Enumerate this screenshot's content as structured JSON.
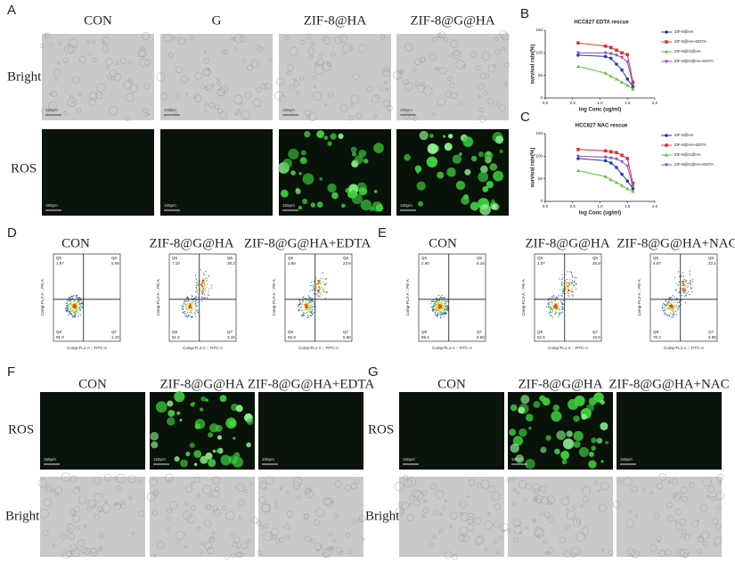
{
  "panel_a": {
    "label": "A",
    "columns": [
      "CON",
      "G",
      "ZIF-8@HA",
      "ZIF-8@G@HA"
    ],
    "rows": [
      "Bright",
      "ROS"
    ],
    "scale_bar": "150μm"
  },
  "chart_data": [
    {
      "type": "line",
      "label": "B",
      "title": "HCC827 EDTA rescue",
      "xlabel": "log Conc (ug/ml)",
      "ylabel": "survival rate(%)",
      "x": [
        0.6,
        1.1,
        1.2,
        1.3,
        1.4,
        1.5,
        1.6
      ],
      "xlim": [
        0,
        2
      ],
      "xticks": [
        {
          "value": 0,
          "label": "0.0"
        },
        {
          "value": 0.5,
          "label": "0.5"
        },
        {
          "value": 1,
          "label": "1.0"
        },
        {
          "value": 1.5,
          "label": "1.5"
        },
        {
          "value": 2,
          "label": "2.0"
        }
      ],
      "ylim": [
        0,
        150
      ],
      "yticks": [
        0,
        50,
        100,
        150
      ],
      "series": [
        {
          "name": "ZIF-8@HA",
          "color": "#1f3f9f",
          "marker": "circle",
          "values": [
            95,
            92,
            88,
            75,
            62,
            42,
            25
          ]
        },
        {
          "name": "ZIF-8@HA+EDTA",
          "color": "#e03030",
          "marker": "square",
          "values": [
            122,
            115,
            112,
            106,
            100,
            96,
            35
          ]
        },
        {
          "name": "ZIF-8@G@HA",
          "color": "#5fc040",
          "marker": "triangle",
          "values": [
            70,
            55,
            48,
            42,
            35,
            28,
            20
          ]
        },
        {
          "name": "ZIF-8@G@HA+EDTA",
          "color": "#8a4fc0",
          "marker": "triangle-down",
          "values": [
            100,
            100,
            98,
            95,
            90,
            80,
            30
          ]
        }
      ]
    },
    {
      "type": "line",
      "label": "C",
      "title": "HCC827 NAC rescue",
      "xlabel": "log Conc (ug/ml)",
      "ylabel": "survival rate(%)",
      "x": [
        0.6,
        1.1,
        1.2,
        1.3,
        1.4,
        1.5,
        1.6
      ],
      "xlim": [
        0,
        2
      ],
      "xticks": [
        {
          "value": 0,
          "label": "0.0"
        },
        {
          "value": 0.5,
          "label": "0.5"
        },
        {
          "value": 1,
          "label": "1.0"
        },
        {
          "value": 1.5,
          "label": "1.5"
        },
        {
          "value": 2,
          "label": "2.0"
        }
      ],
      "ylim": [
        0,
        150
      ],
      "yticks": [
        0,
        50,
        100,
        150
      ],
      "series": [
        {
          "name": "ZIF-8@HA",
          "color": "#1f3f9f",
          "marker": "circle",
          "values": [
            95,
            90,
            85,
            75,
            60,
            45,
            28
          ]
        },
        {
          "name": "ZIF-8@HA+EDTA",
          "color": "#e03030",
          "marker": "square",
          "values": [
            115,
            112,
            110,
            108,
            102,
            95,
            40
          ]
        },
        {
          "name": "ZIF-8@G@HA",
          "color": "#5fc040",
          "marker": "triangle",
          "values": [
            68,
            55,
            48,
            42,
            35,
            28,
            22
          ]
        },
        {
          "name": "ZIF-8@G@HA+EDTA",
          "color": "#8a4fc0",
          "marker": "triangle-down",
          "values": [
            100,
            98,
            96,
            94,
            88,
            78,
            32
          ]
        }
      ]
    }
  ],
  "panel_d": {
    "label": "D",
    "x_axis": "Comp-FL1-A :: FITC-A",
    "y_axis": "Comp-PL3-A :: PE-A",
    "quadrants": [
      "Q5",
      "Q6",
      "Q8",
      "Q7"
    ],
    "plots": [
      {
        "title": "CON",
        "values": [
          "1.57",
          "5.06",
          "91.9",
          "1.43"
        ]
      },
      {
        "title": "ZIF-8@G@HA",
        "values": [
          "7.10",
          "38.3",
          "51.6",
          "3.15"
        ]
      },
      {
        "title": "ZIF-8@G@HA+EDTA",
        "values": [
          "3.89",
          "23.5",
          "65.9",
          "6.66"
        ]
      }
    ]
  },
  "panel_e": {
    "label": "E",
    "x_axis": "Comp-FL1-A :: FITC-A",
    "y_axis": "Comp-PL3-A :: PE-A",
    "quadrants": [
      "Q5",
      "Q6",
      "Q8",
      "Q7"
    ],
    "plots": [
      {
        "title": "CON",
        "values": [
          "2.90",
          "5.16",
          "89.4",
          "2.56"
        ]
      },
      {
        "title": "ZIF-8@G@HA",
        "values": [
          "1.07",
          "35.9",
          "52.5",
          "10.6"
        ]
      },
      {
        "title": "ZIF-8@G@HA+NAC",
        "values": [
          "4.67",
          "22.1",
          "70.2",
          "2.98"
        ]
      }
    ]
  },
  "panel_f": {
    "label": "F",
    "columns": [
      "CON",
      "ZIF-8@G@HA",
      "ZIF-8@G@HA+EDTA"
    ],
    "rows": [
      "ROS",
      "Bright"
    ],
    "scale_bar": "150μm"
  },
  "panel_g": {
    "label": "G",
    "columns": [
      "CON",
      "ZIF-8@G@HA",
      "ZIF-8@G@HA+NAC"
    ],
    "rows": [
      "ROS",
      "Bright"
    ],
    "scale_bar": "150μm"
  }
}
